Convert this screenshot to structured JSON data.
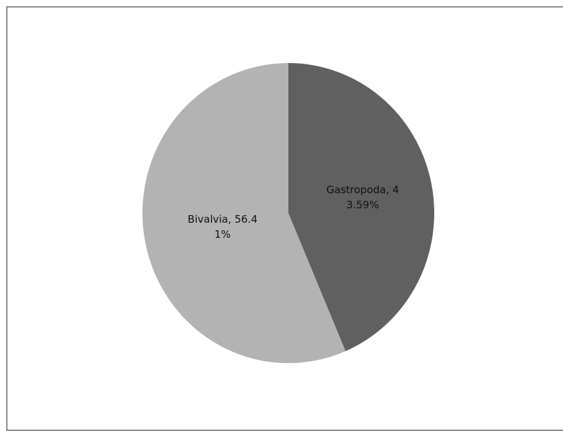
{
  "chart_data": {
    "type": "pie",
    "title": "",
    "slices": [
      {
        "name": "Gastropoda",
        "value": 43.59,
        "label_lines": [
          "Gastropoda, 4",
          "3.59%"
        ],
        "color": "#606060"
      },
      {
        "name": "Bivalvia",
        "value": 56.41,
        "label_lines": [
          "Bivalvia, 56.4",
          "1%"
        ],
        "color": "#b3b3b3"
      }
    ],
    "legend": "none"
  }
}
